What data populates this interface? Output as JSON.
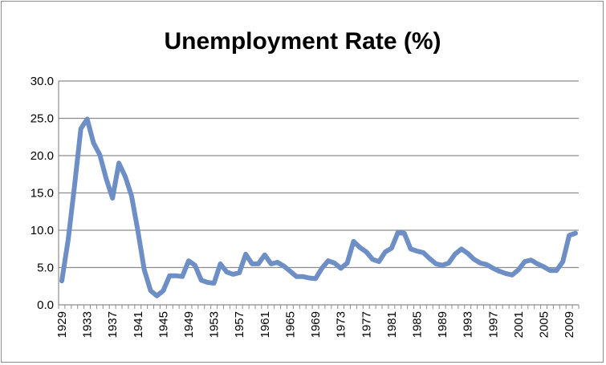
{
  "chart_data": {
    "type": "line",
    "title": "Unemployment Rate (%)",
    "xlabel": "",
    "ylabel": "",
    "ylim": [
      0,
      30
    ],
    "yticks": [
      "0.0",
      "5.0",
      "10.0",
      "15.0",
      "20.0",
      "25.0",
      "30.0"
    ],
    "xticks": [
      "1929",
      "1933",
      "1937",
      "1941",
      "1945",
      "1949",
      "1953",
      "1957",
      "1961",
      "1965",
      "1969",
      "1973",
      "1977",
      "1981",
      "1985",
      "1989",
      "1993",
      "1997",
      "2001",
      "2005",
      "2009"
    ],
    "grid": true,
    "legend": "none",
    "line_color": "#6e8fc6",
    "x": [
      1929,
      1930,
      1931,
      1932,
      1933,
      1934,
      1935,
      1936,
      1937,
      1938,
      1939,
      1940,
      1941,
      1942,
      1943,
      1944,
      1945,
      1946,
      1947,
      1948,
      1949,
      1950,
      1951,
      1952,
      1953,
      1954,
      1955,
      1956,
      1957,
      1958,
      1959,
      1960,
      1961,
      1962,
      1963,
      1964,
      1965,
      1966,
      1967,
      1968,
      1969,
      1970,
      1971,
      1972,
      1973,
      1974,
      1975,
      1976,
      1977,
      1978,
      1979,
      1980,
      1981,
      1982,
      1983,
      1984,
      1985,
      1986,
      1987,
      1988,
      1989,
      1990,
      1991,
      1992,
      1993,
      1994,
      1995,
      1996,
      1997,
      1998,
      1999,
      2000,
      2001,
      2002,
      2003,
      2004,
      2005,
      2006,
      2007,
      2008,
      2009,
      2010
    ],
    "values": [
      3.2,
      8.7,
      15.9,
      23.6,
      24.9,
      21.7,
      20.1,
      16.9,
      14.3,
      19.0,
      17.2,
      14.6,
      9.9,
      4.7,
      1.9,
      1.2,
      1.9,
      3.9,
      3.9,
      3.8,
      5.9,
      5.3,
      3.3,
      3.0,
      2.9,
      5.5,
      4.4,
      4.1,
      4.3,
      6.8,
      5.5,
      5.5,
      6.7,
      5.5,
      5.7,
      5.2,
      4.5,
      3.8,
      3.8,
      3.6,
      3.5,
      4.9,
      5.9,
      5.6,
      4.9,
      5.6,
      8.5,
      7.7,
      7.1,
      6.1,
      5.8,
      7.1,
      7.6,
      9.7,
      9.6,
      7.5,
      7.2,
      7.0,
      6.2,
      5.5,
      5.3,
      5.6,
      6.8,
      7.5,
      6.9,
      6.1,
      5.6,
      5.4,
      4.9,
      4.5,
      4.2,
      4.0,
      4.7,
      5.8,
      6.0,
      5.5,
      5.1,
      4.6,
      4.6,
      5.8,
      9.3,
      9.6
    ]
  }
}
